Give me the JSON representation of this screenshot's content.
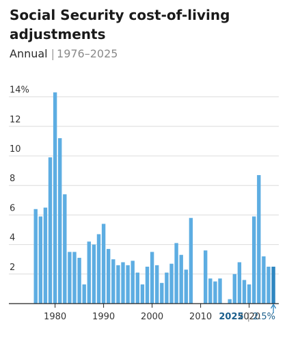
{
  "header": {
    "title": "Social Security cost-of-living adjustments",
    "subtitle_main": "Annual",
    "subtitle_separator": "|",
    "subtitle_range": "1976–2025"
  },
  "chart_data": {
    "type": "bar",
    "title": "Social Security cost-of-living adjustments",
    "subtitle": "Annual | 1976–2025",
    "xlabel": "",
    "ylabel": "",
    "unit": "%",
    "categories": [
      1976,
      1977,
      1978,
      1979,
      1980,
      1981,
      1982,
      1983,
      1984,
      1985,
      1986,
      1987,
      1988,
      1989,
      1990,
      1991,
      1992,
      1993,
      1994,
      1995,
      1996,
      1997,
      1998,
      1999,
      2000,
      2001,
      2002,
      2003,
      2004,
      2005,
      2006,
      2007,
      2008,
      2009,
      2010,
      2011,
      2012,
      2013,
      2014,
      2015,
      2016,
      2017,
      2018,
      2019,
      2020,
      2021,
      2022,
      2023,
      2024,
      2025
    ],
    "values": [
      6.4,
      5.9,
      6.5,
      9.9,
      14.3,
      11.2,
      7.4,
      3.5,
      3.5,
      3.1,
      1.3,
      4.2,
      4.0,
      4.7,
      5.4,
      3.7,
      3.0,
      2.6,
      2.8,
      2.6,
      2.9,
      2.1,
      1.3,
      2.5,
      3.5,
      2.6,
      1.4,
      2.1,
      2.7,
      4.1,
      3.3,
      2.3,
      5.8,
      0.0,
      0.0,
      3.6,
      1.7,
      1.5,
      1.7,
      0.0,
      0.3,
      2.0,
      2.8,
      1.6,
      1.3,
      5.9,
      8.7,
      3.2,
      2.5,
      2.5
    ],
    "ylim": [
      0,
      14
    ],
    "y_ticks": [
      2,
      4,
      6,
      8,
      10,
      12,
      14
    ],
    "y_tick_labels": [
      "2",
      "4",
      "6",
      "8",
      "10",
      "12",
      "14%"
    ],
    "x_ticks": [
      1980,
      1990,
      2000,
      2010,
      2020
    ],
    "x_tick_labels": [
      "1980",
      "1990",
      "2000",
      "2010",
      "2020"
    ],
    "grid": true,
    "highlight": {
      "category": 2025,
      "year_label": "2025",
      "separator": "|",
      "value_label": "2.5%"
    },
    "colors": {
      "bar": "#5dade2",
      "highlight_bar": "#2e86c1",
      "callout_text": "#1b5f8c",
      "grid": "#dcdcdc",
      "axis": "#222222"
    }
  }
}
